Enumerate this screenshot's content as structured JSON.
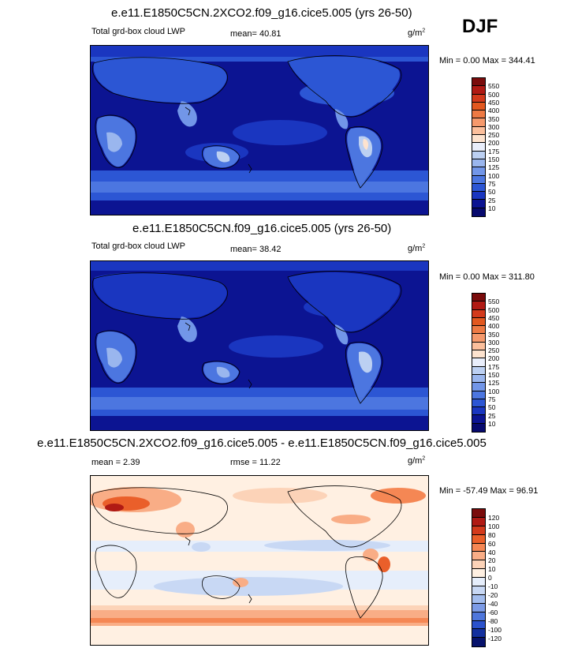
{
  "season": "DJF",
  "units": {
    "base": "g/m",
    "exp": "2"
  },
  "panels": [
    {
      "title": "e.e11.E1850C5CN.2XCO2.f09_g16.cice5.005 (yrs 26-50)",
      "field": "Total grd-box cloud LWP",
      "stat1": "mean=  40.81",
      "minmax": "Min =   0.00 Max = 344.41",
      "ticks": [
        "550",
        "500",
        "450",
        "400",
        "350",
        "300",
        "250",
        "200",
        "175",
        "150",
        "125",
        "100",
        "75",
        "50",
        "25",
        "10"
      ]
    },
    {
      "title": "e.e11.E1850C5CN.f09_g16.cice5.005 (yrs 26-50)",
      "field": "Total grd-box cloud LWP",
      "stat1": "mean=  38.42",
      "minmax": "Min =   0.00 Max = 311.80",
      "ticks": [
        "550",
        "500",
        "450",
        "400",
        "350",
        "300",
        "250",
        "200",
        "175",
        "150",
        "125",
        "100",
        "75",
        "50",
        "25",
        "10"
      ]
    },
    {
      "title": "e.e11.E1850C5CN.2XCO2.f09_g16.cice5.005 - e.e11.E1850C5CN.f09_g16.cice5.005",
      "stat1": "mean =   2.39",
      "stat2": "rmse =  11.22",
      "minmax": "Min = -57.49 Max =  96.91",
      "ticks": [
        "120",
        "100",
        "80",
        "60",
        "40",
        "20",
        "10",
        "0",
        "-10",
        "-20",
        "-40",
        "-60",
        "-80",
        "-100",
        "-120"
      ]
    }
  ],
  "colors": {
    "lwp_scale": [
      "#7a0c0c",
      "#b01a14",
      "#d33a1c",
      "#e2581f",
      "#ee7a44",
      "#f5996c",
      "#fbbf9c",
      "#fde3cf",
      "#e9eefb",
      "#bcd0f2",
      "#9ab6ee",
      "#7296e8",
      "#4c76e0",
      "#2c56d4",
      "#1a36c0",
      "#0c1492",
      "#070a6e"
    ],
    "diff_scale": [
      "#7a0c0c",
      "#b01a14",
      "#d33a1c",
      "#ea5f2a",
      "#f58754",
      "#f9ad86",
      "#fcd3b8",
      "#fff0e2",
      "#e6eefb",
      "#c8d8f4",
      "#a3bdee",
      "#7c9be6",
      "#4f77dc",
      "#2b52cc",
      "#13309e",
      "#07136c"
    ]
  }
}
